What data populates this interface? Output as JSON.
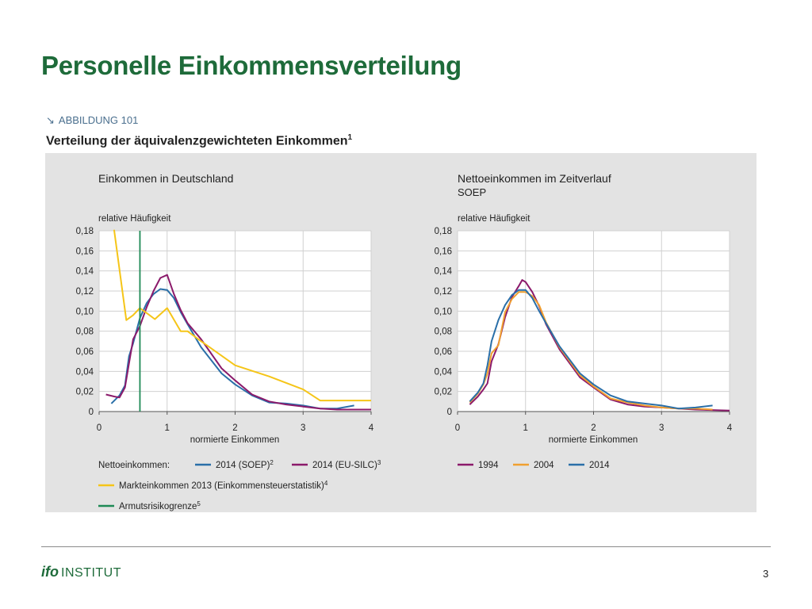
{
  "slide": {
    "title": "Personelle Einkommensverteilung",
    "page_number": "3",
    "logo_bold": "ifo",
    "logo_text": "INSTITUT"
  },
  "figure": {
    "arrow": "↘",
    "ref": "ABBILDUNG 101",
    "title": "Verteilung der äquivalenzgewichteten Einkommen",
    "title_footnote": "1"
  },
  "colors": {
    "soep_2014": "#2a6fa8",
    "eusilc_2014": "#8b1a6b",
    "markt_2013": "#f5c518",
    "armut": "#1e8a55",
    "y1994": "#8b1a6b",
    "y2004": "#f0a030",
    "y2014": "#2a6fa8"
  },
  "chart_data": [
    {
      "type": "line",
      "title": "Einkommen in Deutschland",
      "subtitle": "",
      "ylabel": "relative Häufigkeit",
      "xlabel": "normierte Einkommen",
      "xlim": [
        0,
        4
      ],
      "ylim": [
        0,
        0.18
      ],
      "xticks": [
        "0",
        "1",
        "2",
        "3",
        "4"
      ],
      "yticks": [
        "0",
        "0,02",
        "0,04",
        "0,06",
        "0,08",
        "0,10",
        "0,12",
        "0,14",
        "0,16",
        "0,18"
      ],
      "legend_prefix": "Nettoeinkommen:",
      "series": [
        {
          "name": "2014 (SOEP)",
          "footnote": "2",
          "color": "#2a6fa8",
          "x": [
            0.18,
            0.3,
            0.38,
            0.44,
            0.5,
            0.6,
            0.7,
            0.8,
            0.9,
            1.0,
            1.1,
            1.2,
            1.3,
            1.5,
            1.8,
            2.0,
            2.25,
            2.5,
            2.75,
            3.0,
            3.25,
            3.5,
            3.75
          ],
          "y": [
            0.008,
            0.016,
            0.026,
            0.055,
            0.068,
            0.093,
            0.108,
            0.117,
            0.122,
            0.121,
            0.113,
            0.099,
            0.087,
            0.064,
            0.038,
            0.027,
            0.016,
            0.009,
            0.008,
            0.006,
            0.003,
            0.003,
            0.006
          ]
        },
        {
          "name": "2014 (EU-SILC)",
          "footnote": "3",
          "color": "#8b1a6b",
          "x": [
            0.1,
            0.22,
            0.3,
            0.38,
            0.44,
            0.5,
            0.6,
            0.7,
            0.8,
            0.9,
            1.0,
            1.1,
            1.2,
            1.3,
            1.5,
            1.8,
            2.0,
            2.25,
            2.5,
            2.75,
            3.0,
            3.25,
            3.5,
            3.75,
            4.0
          ],
          "y": [
            0.017,
            0.015,
            0.014,
            0.024,
            0.048,
            0.072,
            0.085,
            0.104,
            0.12,
            0.133,
            0.136,
            0.117,
            0.101,
            0.088,
            0.072,
            0.043,
            0.031,
            0.017,
            0.01,
            0.007,
            0.005,
            0.003,
            0.002,
            0.002,
            0.002
          ]
        },
        {
          "name": "Markteinkommen 2013 (Einkommensteuerstatistik)",
          "footnote": "4",
          "color": "#f5c518",
          "x": [
            0.22,
            0.4,
            0.5,
            0.6,
            0.72,
            0.82,
            1.0,
            1.2,
            1.3,
            1.5,
            2.0,
            2.5,
            3.0,
            3.25,
            3.5,
            4.0
          ],
          "y": [
            0.181,
            0.091,
            0.096,
            0.103,
            0.097,
            0.092,
            0.103,
            0.08,
            0.08,
            0.07,
            0.046,
            0.035,
            0.022,
            0.011,
            0.011,
            0.011
          ]
        },
        {
          "name": "Armutsrisikogrenze",
          "footnote": "5",
          "color": "#1e8a55",
          "vline_x": 0.6
        }
      ]
    },
    {
      "type": "line",
      "title": "Nettoeinkommen im Zeitverlauf",
      "subtitle": "SOEP",
      "ylabel": "relative Häufigkeit",
      "xlabel": "normierte Einkommen",
      "xlim": [
        0,
        4
      ],
      "ylim": [
        0,
        0.18
      ],
      "xticks": [
        "0",
        "1",
        "2",
        "3",
        "4"
      ],
      "yticks": [
        "0",
        "0,02",
        "0,04",
        "0,06",
        "0,08",
        "0,10",
        "0,12",
        "0,14",
        "0,16",
        "0,18"
      ],
      "series": [
        {
          "name": "1994",
          "color": "#8b1a6b",
          "x": [
            0.18,
            0.3,
            0.38,
            0.44,
            0.5,
            0.6,
            0.7,
            0.8,
            0.9,
            0.95,
            1.0,
            1.1,
            1.2,
            1.3,
            1.5,
            1.8,
            2.0,
            2.25,
            2.5,
            2.75,
            3.0,
            3.25,
            3.5,
            4.0
          ],
          "y": [
            0.007,
            0.015,
            0.022,
            0.028,
            0.05,
            0.067,
            0.094,
            0.114,
            0.125,
            0.131,
            0.129,
            0.119,
            0.105,
            0.087,
            0.062,
            0.034,
            0.024,
            0.012,
            0.007,
            0.005,
            0.004,
            0.003,
            0.002,
            0.001
          ]
        },
        {
          "name": "2004",
          "color": "#f0a030",
          "x": [
            0.18,
            0.3,
            0.38,
            0.44,
            0.5,
            0.6,
            0.7,
            0.8,
            0.9,
            1.0,
            1.1,
            1.2,
            1.3,
            1.5,
            1.8,
            2.0,
            2.25,
            2.5,
            2.75,
            3.0,
            3.25,
            3.5,
            3.75
          ],
          "y": [
            0.009,
            0.018,
            0.027,
            0.038,
            0.058,
            0.066,
            0.099,
            0.112,
            0.119,
            0.119,
            0.115,
            0.106,
            0.089,
            0.064,
            0.036,
            0.025,
            0.013,
            0.009,
            0.006,
            0.004,
            0.003,
            0.003,
            0.002
          ]
        },
        {
          "name": "2014",
          "color": "#2a6fa8",
          "x": [
            0.18,
            0.3,
            0.38,
            0.44,
            0.5,
            0.6,
            0.7,
            0.8,
            0.9,
            1.0,
            1.1,
            1.2,
            1.3,
            1.5,
            1.8,
            2.0,
            2.25,
            2.5,
            2.75,
            3.0,
            3.25,
            3.5,
            3.75
          ],
          "y": [
            0.01,
            0.019,
            0.028,
            0.046,
            0.07,
            0.091,
            0.106,
            0.116,
            0.121,
            0.121,
            0.113,
            0.1,
            0.088,
            0.065,
            0.038,
            0.027,
            0.016,
            0.01,
            0.008,
            0.006,
            0.003,
            0.004,
            0.006
          ]
        }
      ]
    }
  ]
}
